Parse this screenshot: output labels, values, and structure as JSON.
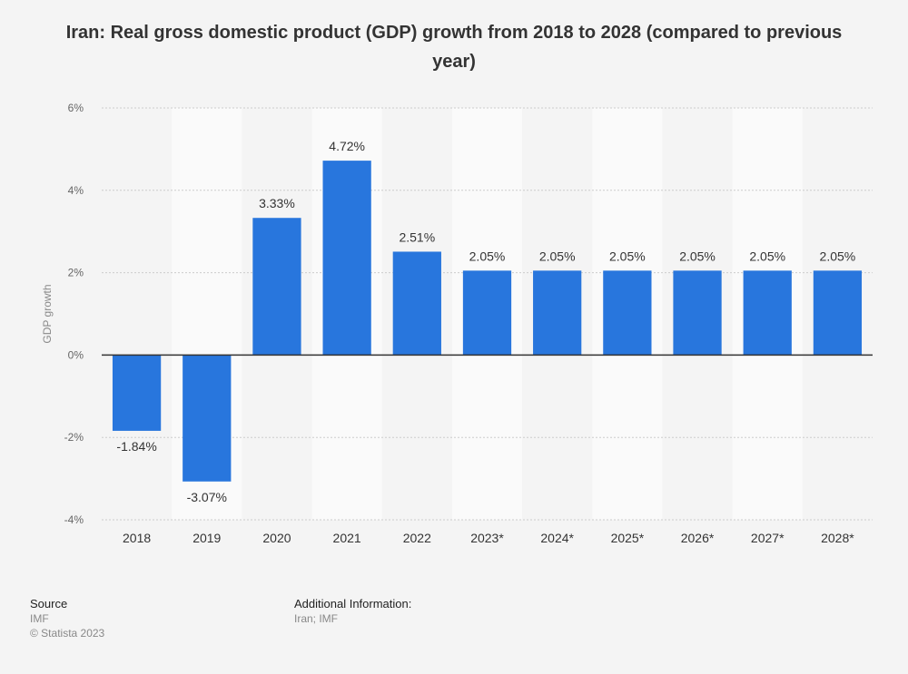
{
  "title": "Iran: Real gross domestic product (GDP) growth from 2018 to 2028 (compared to previous year)",
  "chart_data": {
    "type": "bar",
    "title": "Iran: Real gross domestic product (GDP) growth from 2018 to 2028 (compared to previous year)",
    "xlabel": "",
    "ylabel": "GDP growth",
    "categories": [
      "2018",
      "2019",
      "2020",
      "2021",
      "2022",
      "2023*",
      "2024*",
      "2025*",
      "2026*",
      "2027*",
      "2028*"
    ],
    "values": [
      -1.84,
      -3.07,
      3.33,
      4.72,
      2.51,
      2.05,
      2.05,
      2.05,
      2.05,
      2.05,
      2.05
    ],
    "value_labels": [
      "-1.84%",
      "-3.07%",
      "3.33%",
      "4.72%",
      "2.51%",
      "2.05%",
      "2.05%",
      "2.05%",
      "2.05%",
      "2.05%",
      "2.05%"
    ],
    "ylim": [
      -4,
      6
    ],
    "yticks": [
      -4,
      -2,
      0,
      2,
      4,
      6
    ],
    "ytick_labels": [
      "-4%",
      "-2%",
      "0%",
      "2%",
      "4%",
      "6%"
    ],
    "grid": true,
    "legend": "none",
    "colors": {
      "bar": "#2876dd",
      "band": "#fafafa",
      "background": "#f4f4f4",
      "grid": "#cccccc",
      "zero_line": "#333333"
    }
  },
  "footer": {
    "source_heading": "Source",
    "source_lines": [
      "IMF",
      "© Statista 2023"
    ],
    "info_heading": "Additional Information:",
    "info_lines": [
      "Iran; IMF"
    ]
  }
}
